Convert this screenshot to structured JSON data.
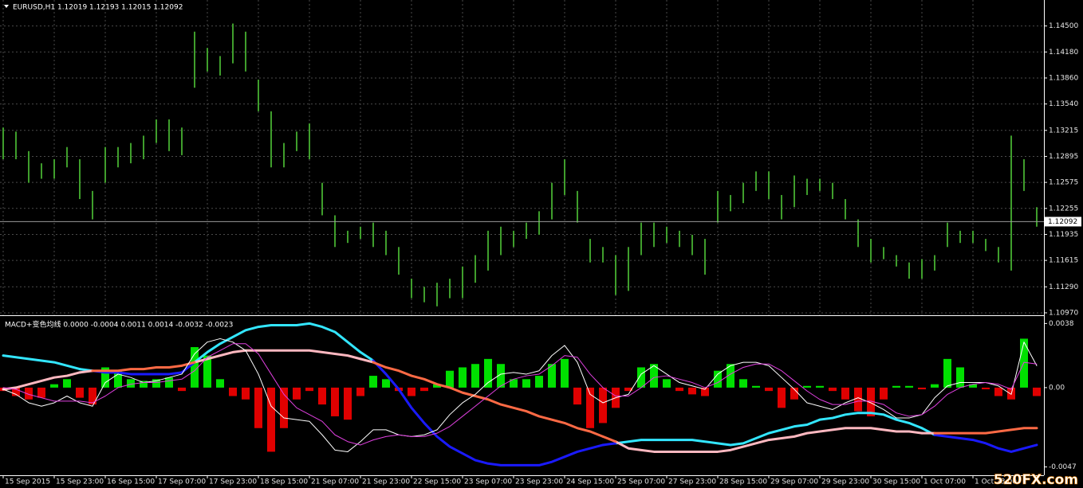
{
  "chart_data": [
    {
      "type": "ohlc",
      "title": "EURUSD,H1  1.12019 1.12193 1.12015 1.12092",
      "categories": [
        "15 Sep 2015",
        null,
        null,
        null,
        "15 Sep 23:00",
        null,
        null,
        null,
        "16 Sep 15:00",
        null,
        null,
        null,
        "17 Sep 07:00",
        null,
        null,
        null,
        "17 Sep 23:00",
        null,
        null,
        null,
        "18 Sep 15:00",
        null,
        null,
        null,
        "21 Sep 07:00",
        null,
        null,
        null,
        "21 Sep 23:00",
        null,
        null,
        null,
        "22 Sep 15:00",
        null,
        null,
        null,
        "23 Sep 07:00",
        null,
        null,
        null,
        "23 Sep 23:00",
        null,
        null,
        null,
        "24 Sep 15:00",
        null,
        null,
        null,
        "25 Sep 07:00",
        null,
        null,
        null,
        "27 Sep 23:00",
        null,
        null,
        null,
        "28 Sep 15:00",
        null,
        null,
        null,
        "29 Sep 07:00",
        null,
        null,
        null,
        "29 Sep 23:00",
        null,
        null,
        null,
        "30 Sep 15:00",
        null,
        null,
        null,
        "1 Oct 07:00",
        null,
        null,
        null,
        "1 Oct 23:00",
        null,
        null,
        null,
        null,
        null
      ],
      "high": [
        1.1325,
        1.132,
        1.1296,
        1.1281,
        1.1286,
        1.1301,
        1.1286,
        1.1247,
        1.1301,
        1.1301,
        1.1306,
        1.1315,
        1.1335,
        1.1335,
        1.1325,
        1.1443,
        1.1423,
        1.1413,
        1.1453,
        1.1443,
        1.1384,
        1.1345,
        1.1306,
        1.132,
        1.133,
        1.1257,
        1.1217,
        1.1198,
        1.1203,
        1.1208,
        1.1198,
        1.1178,
        1.1139,
        1.1129,
        1.1134,
        1.1139,
        1.1154,
        1.1168,
        1.1198,
        1.1203,
        1.1198,
        1.1208,
        1.1222,
        1.1257,
        1.1286,
        1.1247,
        1.1188,
        1.1178,
        1.1168,
        1.1178,
        1.1208,
        1.1208,
        1.1203,
        1.1198,
        1.1193,
        1.1188,
        1.1247,
        1.1242,
        1.1257,
        1.1271,
        1.1271,
        1.1242,
        1.1266,
        1.1262,
        1.1262,
        1.1257,
        1.1237,
        1.1212,
        1.1188,
        1.1178,
        1.1168,
        1.1159,
        1.1163,
        1.1168,
        1.1208,
        1.1198,
        1.1198,
        1.1188,
        1.1178,
        1.1315,
        1.1286,
        1.1227
      ],
      "low": [
        1.1286,
        1.1286,
        1.1257,
        1.1262,
        1.1262,
        1.1276,
        1.1237,
        1.1212,
        1.1257,
        1.1276,
        1.1281,
        1.1286,
        1.1306,
        1.1296,
        1.1291,
        1.1374,
        1.1394,
        1.1389,
        1.1404,
        1.1394,
        1.1345,
        1.1276,
        1.1276,
        1.1296,
        1.1286,
        1.1217,
        1.1178,
        1.1183,
        1.1188,
        1.1178,
        1.1168,
        1.1144,
        1.1115,
        1.111,
        1.1105,
        1.1115,
        1.1115,
        1.1134,
        1.1149,
        1.1168,
        1.1178,
        1.1188,
        1.1193,
        1.1212,
        1.1242,
        1.1208,
        1.1159,
        1.1159,
        1.1119,
        1.1124,
        1.1168,
        1.1178,
        1.1183,
        1.1178,
        1.1168,
        1.1144,
        1.1208,
        1.1222,
        1.1232,
        1.1247,
        1.1237,
        1.1212,
        1.1227,
        1.1242,
        1.1247,
        1.1237,
        1.1212,
        1.1178,
        1.1159,
        1.1163,
        1.1154,
        1.1139,
        1.1139,
        1.1149,
        1.1178,
        1.1183,
        1.1183,
        1.1173,
        1.1159,
        1.1149,
        1.1247,
        1.1203
      ],
      "color": "#3f9e2c",
      "current_price": 1.12092,
      "ylim": [
        1.1095,
        1.148
      ],
      "yticks": [
        {
          "value": 1.145,
          "label": "1.14500"
        },
        {
          "value": 1.1418,
          "label": "1.14180"
        },
        {
          "value": 1.1386,
          "label": "1.13860"
        },
        {
          "value": 1.1354,
          "label": "1.13540"
        },
        1.13215,
        1.12895,
        1.12575,
        1.12255,
        1.11935,
        1.11615,
        {
          "value": 1.1129,
          "label": "1.11290"
        },
        {
          "value": 1.1097,
          "label": "1.10970"
        }
      ],
      "grid": true
    },
    {
      "type": "macd",
      "title": "MACD+变色均线 0.0000 -0.0004 0.0011 0.0014 -0.0032 -0.0023",
      "histogram": {
        "up_color": "#00e000",
        "down_color": "#e00000",
        "values": [
          -0.0002,
          -0.0005,
          -0.0007,
          -0.0006,
          0.0002,
          0.0005,
          -0.0006,
          -0.001,
          0.0012,
          0.001,
          0.0005,
          0.0004,
          0.0005,
          0.0006,
          -0.0002,
          0.0024,
          0.0019,
          0.0005,
          -0.0005,
          -0.0007,
          -0.0024,
          -0.0038,
          -0.0024,
          -0.0007,
          -0.0002,
          -0.001,
          -0.0017,
          -0.0019,
          -0.0005,
          0.0007,
          0.0005,
          -0.0002,
          -0.0005,
          -0.0002,
          0.0002,
          0.001,
          0.0012,
          0.0014,
          0.0017,
          0.0014,
          0.0005,
          0.0005,
          0.0007,
          0.0014,
          0.0017,
          -0.001,
          -0.0024,
          -0.0021,
          -0.0012,
          -0.0002,
          0.0012,
          0.0014,
          0.0005,
          -0.0002,
          -0.0004,
          -0.0005,
          0.001,
          0.0014,
          0.0005,
          0.0001,
          -0.0002,
          -0.0012,
          -0.0007,
          0.0001,
          0.0001,
          -0.0002,
          -0.0007,
          -0.0014,
          -0.0017,
          -0.0007,
          0.0001,
          0.0001,
          -0.0001,
          0.0002,
          0.0017,
          0.0012,
          0.0002,
          -0.0001,
          -0.0005,
          -0.0007,
          0.0029,
          -0.0005
        ]
      },
      "lines": [
        {
          "color": "#ffffff",
          "values": [
            -0.0001,
            -0.0004,
            -0.0009,
            -0.0011,
            -0.0009,
            -0.0005,
            -0.0009,
            -0.0011,
            0.0003,
            0.0008,
            0.0006,
            0.0003,
            0.0004,
            0.0006,
            0.0008,
            0.002,
            0.0027,
            0.0029,
            0.0027,
            0.0022,
            0.0008,
            -0.0011,
            -0.0018,
            -0.0019,
            -0.002,
            -0.0028,
            -0.0037,
            -0.0038,
            -0.0032,
            -0.0025,
            -0.0025,
            -0.0028,
            -0.0029,
            -0.0028,
            -0.0025,
            -0.0016,
            -0.0009,
            -0.0004,
            0.0003,
            0.0008,
            0.0009,
            0.0008,
            0.001,
            0.0019,
            0.0025,
            0.0015,
            -0.0004,
            -0.0009,
            -0.0006,
            -0.0004,
            0.0008,
            0.0013,
            0.0008,
            0.0003,
            0.0001,
            -0.0001,
            0.0008,
            0.0013,
            0.0015,
            0.0015,
            0.0013,
            0.0006,
            -0.0001,
            -0.0009,
            -0.0011,
            -0.0013,
            -0.0009,
            -0.0006,
            -0.0009,
            -0.0013,
            -0.0018,
            -0.0018,
            -0.0016,
            -0.0006,
            0.0001,
            0.0003,
            0.0003,
            0.0003,
            0.0001,
            -0.0004,
            0.0027,
            0.0013
          ]
        },
        {
          "color": "#e040e0",
          "values": [
            0,
            -0.0001,
            -0.0004,
            -0.0006,
            -0.0008,
            -0.0008,
            -0.0008,
            -0.0009,
            -0.0005,
            0,
            0.0002,
            0.0003,
            0.0003,
            0.0004,
            0.0005,
            0.001,
            0.0018,
            0.0022,
            0.0026,
            0.0026,
            0.002,
            0.0008,
            -0.0004,
            -0.0012,
            -0.0016,
            -0.002,
            -0.0028,
            -0.0032,
            -0.0034,
            -0.0031,
            -0.0029,
            -0.0028,
            -0.0029,
            -0.0029,
            -0.0027,
            -0.0023,
            -0.0017,
            -0.0011,
            -0.0005,
            0.0001,
            0.0005,
            0.0007,
            0.0008,
            0.0013,
            0.0019,
            0.0018,
            0.0008,
            0,
            -0.0005,
            -0.0005,
            0,
            0.0006,
            0.0007,
            0.0005,
            0.0003,
            0,
            0.0003,
            0.0008,
            0.0012,
            0.0014,
            0.0014,
            0.001,
            0.0004,
            -0.0002,
            -0.0007,
            -0.001,
            -0.001,
            -0.0008,
            -0.0008,
            -0.001,
            -0.0015,
            -0.0017,
            -0.0016,
            -0.0011,
            -0.0004,
            0,
            0.0002,
            0.0003,
            0.0002,
            -0.0001,
            0.0015,
            0.0014
          ]
        }
      ],
      "ma_lines": [
        {
          "series": [
            {
              "color": "#33e6ff",
              "values": [
                0.0019,
                0.0018,
                0.0017,
                0.0016,
                0.0015,
                0.0013,
                0.0011,
                null,
                null,
                null,
                null,
                null,
                null,
                null,
                null,
                0.0015,
                0.0021,
                0.0026,
                0.003,
                0.0034,
                0.0036,
                0.0037,
                0.0037,
                0.0037,
                0.0038,
                0.0036,
                0.0033,
                0.0027,
                0.0021,
                null,
                null,
                null,
                null,
                null,
                null,
                null,
                null,
                null,
                null,
                null,
                null,
                null,
                null,
                null,
                null,
                null,
                null,
                null,
                -0.0033,
                -0.0032,
                -0.0031,
                -0.0031,
                -0.0031,
                -0.0031,
                -0.0031,
                -0.0032,
                -0.0033,
                -0.0034,
                -0.0033,
                -0.003,
                -0.0027,
                -0.0025,
                -0.0023,
                -0.0022,
                -0.0019,
                -0.0018,
                -0.0016,
                -0.0015,
                -0.0015,
                -0.0016,
                -0.0019,
                -0.0021,
                -0.0024,
                null,
                null,
                null,
                null,
                null,
                null,
                null,
                null,
                null
              ]
            },
            {
              "color": "#1a1aff",
              "values": [
                null,
                null,
                null,
                null,
                null,
                null,
                null,
                0.001,
                0.0009,
                0.0009,
                0.0008,
                0.0008,
                0.0008,
                0.0008,
                0.0009,
                null,
                null,
                null,
                null,
                null,
                null,
                null,
                null,
                null,
                null,
                null,
                null,
                null,
                null,
                0.0016,
                0.0008,
                -0.0001,
                -0.0012,
                -0.0021,
                -0.0029,
                -0.0035,
                -0.0039,
                -0.0043,
                -0.0045,
                -0.0046,
                -0.0046,
                -0.0046,
                -0.0046,
                -0.0044,
                -0.0041,
                -0.0038,
                -0.0036,
                -0.0034,
                null,
                null,
                null,
                null,
                null,
                null,
                null,
                null,
                null,
                null,
                null,
                null,
                null,
                null,
                null,
                null,
                null,
                null,
                null,
                null,
                null,
                null,
                null,
                null,
                null,
                -0.0028,
                -0.0029,
                -0.003,
                -0.0031,
                -0.0033,
                -0.0036,
                -0.0038,
                -0.0036,
                -0.0034
              ]
            }
          ]
        },
        {
          "series": [
            {
              "color": "#ffb8c0",
              "values": [
                -0.0001,
                0,
                0.0002,
                0.0004,
                0.0006,
                0.0007,
                0.0009,
                null,
                null,
                null,
                null,
                null,
                null,
                null,
                null,
                0.0015,
                0.0017,
                0.0019,
                0.0021,
                0.0022,
                0.0022,
                0.0022,
                0.0022,
                0.0022,
                0.0022,
                0.0021,
                0.002,
                0.0019,
                0.0017,
                null,
                null,
                null,
                null,
                null,
                null,
                null,
                null,
                null,
                null,
                null,
                null,
                null,
                null,
                null,
                null,
                null,
                null,
                null,
                -0.0032,
                -0.0036,
                -0.0037,
                -0.0038,
                -0.0038,
                -0.0038,
                -0.0038,
                -0.0038,
                -0.0038,
                -0.0037,
                -0.0035,
                -0.0033,
                -0.0031,
                -0.003,
                -0.0029,
                -0.0027,
                -0.0026,
                -0.0025,
                -0.0024,
                -0.0024,
                -0.0024,
                -0.0025,
                -0.0026,
                -0.0026,
                -0.0027,
                null,
                null,
                null,
                null,
                null,
                null,
                null,
                null,
                null
              ]
            },
            {
              "color": "#ff6a45",
              "values": [
                null,
                null,
                null,
                null,
                null,
                null,
                null,
                0.001,
                0.001,
                0.001,
                0.0011,
                0.0011,
                0.0012,
                0.0012,
                0.0013,
                null,
                null,
                null,
                null,
                null,
                null,
                null,
                null,
                null,
                null,
                null,
                null,
                null,
                null,
                0.0015,
                0.0012,
                0.001,
                0.0007,
                0.0005,
                0.0002,
                0,
                -0.0003,
                -0.0005,
                -0.0007,
                -0.001,
                -0.0012,
                -0.0014,
                -0.0017,
                -0.0019,
                -0.0021,
                -0.0024,
                -0.0026,
                -0.0029,
                null,
                null,
                null,
                null,
                null,
                null,
                null,
                null,
                null,
                null,
                null,
                null,
                null,
                null,
                null,
                null,
                null,
                null,
                null,
                null,
                null,
                null,
                null,
                null,
                null,
                -0.0027,
                -0.0027,
                -0.0027,
                -0.0027,
                -0.0027,
                -0.0026,
                -0.0025,
                -0.0024,
                -0.0024
              ]
            }
          ]
        }
      ],
      "ylim": [
        -0.0051,
        0.0041
      ],
      "yticks": [
        0.0038,
        {
          "value": 0,
          "label": "0.00"
        },
        -0.0047
      ]
    }
  ],
  "watermark": "520FX.com"
}
